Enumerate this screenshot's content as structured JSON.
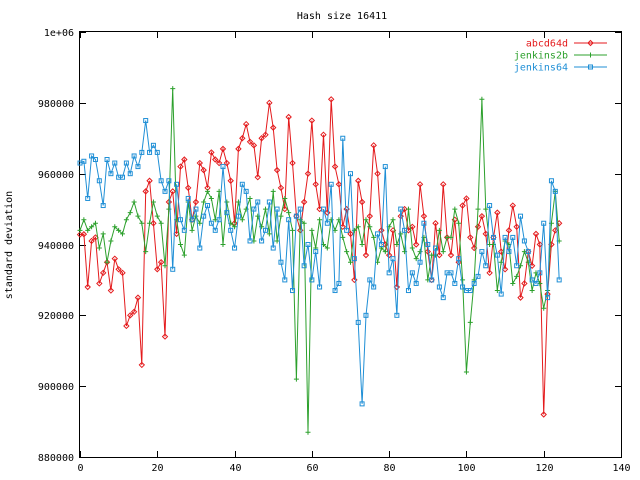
{
  "chart_data": {
    "type": "line",
    "title": "Hash size 16411",
    "xlabel": "",
    "ylabel": "standard deviation",
    "xlim": [
      0,
      140
    ],
    "ylim": [
      880000,
      1000000
    ],
    "x_ticks": [
      0,
      20,
      40,
      60,
      80,
      100,
      120,
      140
    ],
    "y_ticks": [
      880000,
      900000,
      920000,
      940000,
      960000,
      980000,
      1000000
    ],
    "y_tick_labels": [
      "880000",
      "900000",
      "920000",
      "940000",
      "960000",
      "980000",
      "1e+06"
    ],
    "grid": false,
    "legend_position": "top-right",
    "series": [
      {
        "name": "abcd64d",
        "color": "#e41a1c",
        "marker": "diamond",
        "values": [
          942800,
          942900,
          928000,
          941000,
          942000,
          929000,
          932000,
          935000,
          927000,
          936000,
          933000,
          932000,
          917000,
          920000,
          921000,
          925000,
          906000,
          955000,
          958000,
          946000,
          933000,
          935000,
          914000,
          952000,
          955000,
          943000,
          962000,
          964000,
          956000,
          947000,
          952000,
          963000,
          961000,
          956000,
          966000,
          964000,
          963000,
          967000,
          963000,
          958000,
          946000,
          967000,
          970000,
          974000,
          969000,
          968000,
          959000,
          970000,
          971000,
          980000,
          973000,
          961000,
          956000,
          950000,
          976000,
          963000,
          948000,
          944000,
          952000,
          960000,
          975000,
          957000,
          950000,
          971000,
          949000,
          981000,
          962000,
          957000,
          945000,
          950000,
          943000,
          930000,
          958000,
          952000,
          937000,
          948000,
          968000,
          960000,
          944000,
          940000,
          937000,
          944000,
          928000,
          948000,
          950000,
          944000,
          945000,
          940000,
          957000,
          948000,
          938000,
          930000,
          946000,
          937000,
          957000,
          942000,
          937000,
          947000,
          935000,
          951000,
          953000,
          942000,
          939000,
          945000,
          948000,
          943000,
          932000,
          942000,
          949000,
          938000,
          933000,
          944000,
          951000,
          945000,
          925000,
          929000,
          938000,
          934000,
          943000,
          940000,
          892000,
          926000,
          940000,
          944000,
          946000
        ]
      },
      {
        "name": "jenkins2b",
        "color": "#2ca02c",
        "marker": "plus",
        "values": [
          944000,
          947000,
          944000,
          945000,
          946000,
          939000,
          943000,
          935000,
          941000,
          945000,
          944000,
          943000,
          947000,
          949000,
          952000,
          948000,
          946000,
          938000,
          946000,
          952000,
          948000,
          946000,
          934000,
          950000,
          984000,
          947000,
          940000,
          937000,
          952000,
          944000,
          948000,
          946000,
          952000,
          955000,
          953000,
          947000,
          955000,
          940000,
          952000,
          946000,
          945000,
          952000,
          947000,
          950000,
          953000,
          941000,
          948000,
          945000,
          950000,
          943000,
          955000,
          941000,
          948000,
          953000,
          949000,
          944000,
          902000,
          947000,
          946000,
          887000,
          944000,
          939000,
          947000,
          940000,
          939000,
          947000,
          944000,
          947000,
          942000,
          938000,
          935000,
          944000,
          945000,
          940000,
          947000,
          945000,
          942000,
          935000,
          939000,
          938000,
          945000,
          947000,
          940000,
          943000,
          938000,
          950000,
          939000,
          936000,
          938000,
          942000,
          930000,
          937000,
          937000,
          944000,
          938000,
          942000,
          942000,
          950000,
          946000,
          930000,
          904000,
          918000,
          930000,
          950000,
          981000,
          950000,
          940000,
          940000,
          927000,
          935000,
          941000,
          940000,
          929000,
          931000,
          934000,
          938000,
          935000,
          927000,
          932000,
          929000,
          922000,
          927000,
          946000,
          955000,
          941000
        ]
      },
      {
        "name": "jenkins64",
        "color": "#1f8fd6",
        "marker": "square",
        "values": [
          963000,
          963500,
          953000,
          965000,
          964000,
          958000,
          951000,
          964000,
          960000,
          963000,
          959000,
          959000,
          963000,
          960000,
          965000,
          962000,
          966000,
          975000,
          966000,
          968000,
          966000,
          958000,
          955000,
          958000,
          933000,
          957000,
          947000,
          944000,
          953000,
          947000,
          950000,
          939000,
          948000,
          951000,
          946000,
          944000,
          947000,
          962000,
          949000,
          944000,
          939000,
          948000,
          957000,
          955000,
          941000,
          950000,
          952000,
          941000,
          944000,
          952000,
          939000,
          950000,
          935000,
          930000,
          947000,
          927000,
          948000,
          950000,
          934000,
          940000,
          930000,
          938000,
          928000,
          950000,
          946000,
          957000,
          927000,
          929000,
          970000,
          944000,
          960000,
          936000,
          918000,
          895000,
          920000,
          930000,
          928000,
          943000,
          940000,
          962000,
          932000,
          936000,
          920000,
          950000,
          944000,
          927000,
          932000,
          929000,
          935000,
          946000,
          940000,
          930000,
          939000,
          928000,
          925000,
          932000,
          932000,
          929000,
          936000,
          928000,
          927000,
          927000,
          929000,
          931000,
          938000,
          934000,
          951000,
          942000,
          937000,
          926000,
          942000,
          938000,
          942000,
          934000,
          948000,
          941000,
          938000,
          930000,
          929000,
          932000,
          946000,
          925000,
          958000,
          955000,
          930000
        ]
      }
    ]
  }
}
